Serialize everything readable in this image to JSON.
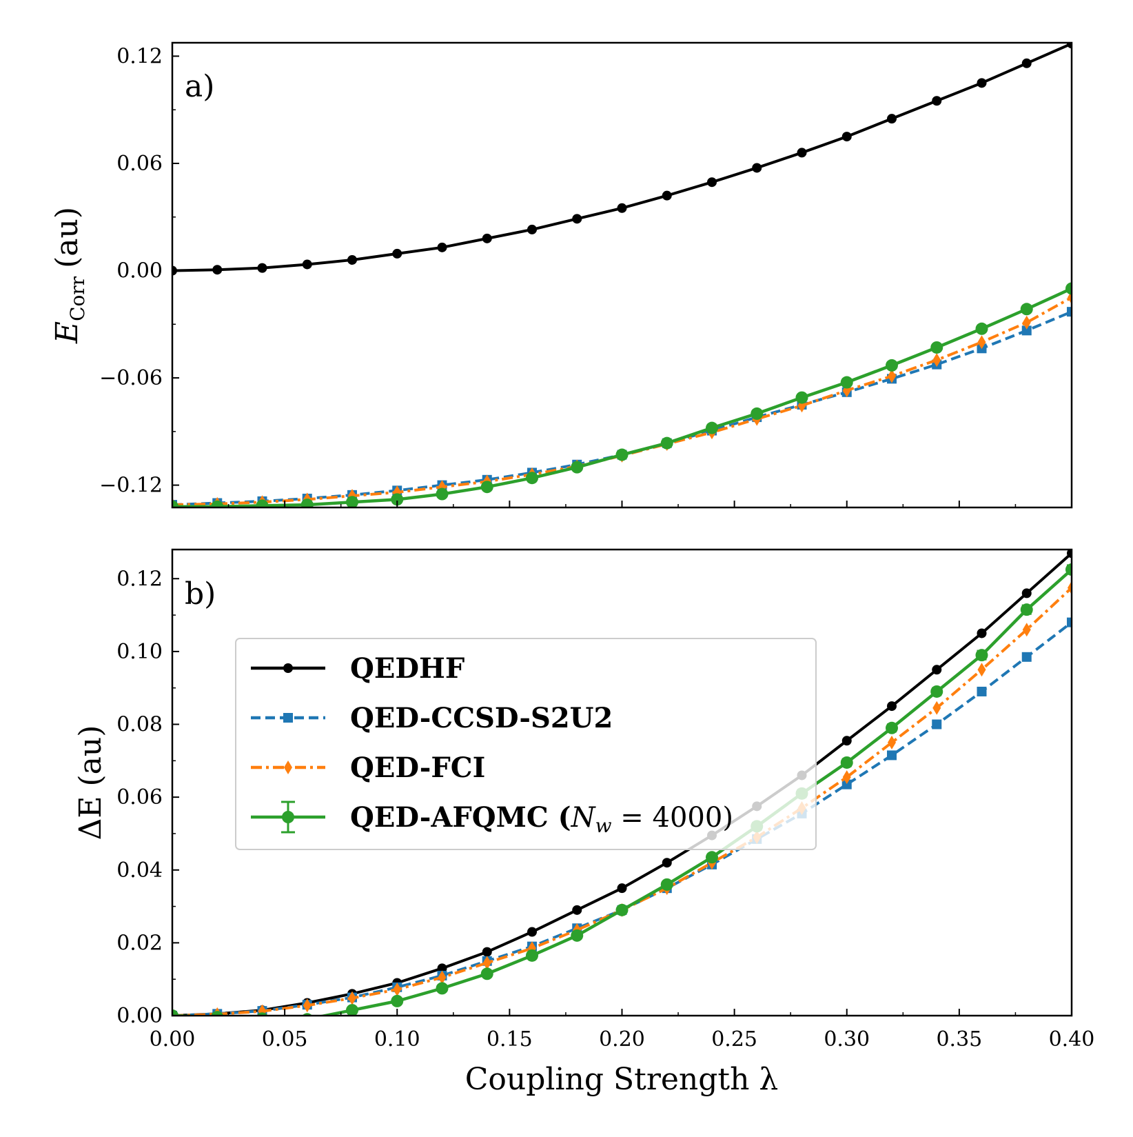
{
  "chart_data": [
    {
      "type": "line",
      "panel_label": "a)",
      "title": "",
      "xlabel": "",
      "ylabel": "E",
      "ylabel_subscript": "Corr",
      "ylabel_suffix": "(au)",
      "xlim": [
        0.0,
        0.4
      ],
      "ylim": [
        -0.1325,
        0.1275
      ],
      "xticks": [
        0.0,
        0.05,
        0.1,
        0.15,
        0.2,
        0.25,
        0.3,
        0.35,
        0.4
      ],
      "yticks": [
        -0.12,
        -0.06,
        0.0,
        0.06,
        0.12
      ],
      "ytick_labels": [
        "−0.12",
        "−0.06",
        "0.00",
        "0.06",
        "0.12"
      ],
      "x": [
        0.0,
        0.02,
        0.04,
        0.06,
        0.08,
        0.1,
        0.12,
        0.14,
        0.16,
        0.18,
        0.2,
        0.22,
        0.24,
        0.26,
        0.28,
        0.3,
        0.32,
        0.34,
        0.36,
        0.38,
        0.4
      ],
      "series": [
        {
          "name": "QEDHF",
          "color": "#000000",
          "marker": "circle",
          "dash": "solid",
          "values": [
            0.0,
            0.0005,
            0.0015,
            0.0035,
            0.006,
            0.0095,
            0.013,
            0.018,
            0.023,
            0.029,
            0.035,
            0.042,
            0.0495,
            0.0575,
            0.066,
            0.075,
            0.085,
            0.095,
            0.105,
            0.116,
            0.127
          ]
        },
        {
          "name": "QED-CCSD-S2U2",
          "color": "#1f77b4",
          "marker": "square",
          "dash": "dashed",
          "values": [
            -0.131,
            -0.13,
            -0.129,
            -0.1275,
            -0.1255,
            -0.123,
            -0.12,
            -0.117,
            -0.113,
            -0.1085,
            -0.103,
            -0.0965,
            -0.0895,
            -0.082,
            -0.075,
            -0.068,
            -0.0605,
            -0.0525,
            -0.0435,
            -0.0335,
            -0.023
          ]
        },
        {
          "name": "QED-FCI",
          "color": "#ff7f0e",
          "marker": "diamond",
          "dash": "dashdot",
          "values": [
            -0.131,
            -0.1305,
            -0.1295,
            -0.128,
            -0.126,
            -0.124,
            -0.121,
            -0.118,
            -0.114,
            -0.1095,
            -0.1035,
            -0.097,
            -0.0905,
            -0.083,
            -0.0755,
            -0.067,
            -0.059,
            -0.05,
            -0.04,
            -0.029,
            -0.015
          ]
        },
        {
          "name": "QED-AFQMC (N_w = 4000)",
          "color": "#2ca02c",
          "marker": "circle-large",
          "dash": "solid",
          "values": [
            -0.132,
            -0.132,
            -0.1315,
            -0.131,
            -0.1295,
            -0.128,
            -0.125,
            -0.121,
            -0.116,
            -0.11,
            -0.103,
            -0.0965,
            -0.088,
            -0.08,
            -0.071,
            -0.0625,
            -0.053,
            -0.043,
            -0.0325,
            -0.0215,
            -0.01
          ],
          "errors": [
            0,
            0,
            0,
            0,
            0,
            0,
            0,
            0,
            0,
            0,
            0,
            0,
            0,
            0,
            0,
            0.001,
            0.001,
            0.0012,
            0.0012,
            0.0012,
            0.0012
          ]
        }
      ]
    },
    {
      "type": "line",
      "panel_label": "b)",
      "title": "",
      "xlabel": "Coupling Strength λ",
      "ylabel": "ΔE (au)",
      "xlim": [
        0.0,
        0.4
      ],
      "ylim": [
        0.0,
        0.128
      ],
      "xticks": [
        0.0,
        0.05,
        0.1,
        0.15,
        0.2,
        0.25,
        0.3,
        0.35,
        0.4
      ],
      "xtick_labels": [
        "0.00",
        "0.05",
        "0.10",
        "0.15",
        "0.20",
        "0.25",
        "0.30",
        "0.35",
        "0.40"
      ],
      "yticks": [
        0.0,
        0.02,
        0.04,
        0.06,
        0.08,
        0.1,
        0.12
      ],
      "ytick_labels": [
        "0.00",
        "0.02",
        "0.04",
        "0.06",
        "0.08",
        "0.10",
        "0.12"
      ],
      "x": [
        0.0,
        0.02,
        0.04,
        0.06,
        0.08,
        0.1,
        0.12,
        0.14,
        0.16,
        0.18,
        0.2,
        0.22,
        0.24,
        0.26,
        0.28,
        0.3,
        0.32,
        0.34,
        0.36,
        0.38,
        0.4
      ],
      "series": [
        {
          "name": "QEDHF",
          "color": "#000000",
          "marker": "circle",
          "dash": "solid",
          "values": [
            0.0,
            0.0005,
            0.0015,
            0.0035,
            0.006,
            0.009,
            0.013,
            0.0175,
            0.023,
            0.029,
            0.035,
            0.042,
            0.0495,
            0.0575,
            0.066,
            0.0755,
            0.085,
            0.095,
            0.105,
            0.116,
            0.127
          ]
        },
        {
          "name": "QED-CCSD-S2U2",
          "color": "#1f77b4",
          "marker": "square",
          "dash": "dashed",
          "values": [
            0.0,
            0.0005,
            0.0013,
            0.003,
            0.005,
            0.0078,
            0.011,
            0.015,
            0.019,
            0.024,
            0.029,
            0.035,
            0.0415,
            0.0485,
            0.0555,
            0.0635,
            0.0715,
            0.08,
            0.089,
            0.0985,
            0.108
          ]
        },
        {
          "name": "QED-FCI",
          "color": "#ff7f0e",
          "marker": "diamond",
          "dash": "dashdot",
          "values": [
            0.0,
            0.0004,
            0.0012,
            0.0028,
            0.0048,
            0.0072,
            0.0105,
            0.0145,
            0.0185,
            0.0235,
            0.029,
            0.035,
            0.042,
            0.049,
            0.057,
            0.0655,
            0.075,
            0.0845,
            0.095,
            0.106,
            0.1175
          ]
        },
        {
          "name": "QED-AFQMC (N_w = 4000)",
          "color": "#2ca02c",
          "marker": "circle-large",
          "dash": "solid",
          "values": [
            0.0,
            -0.0004,
            -0.0008,
            -0.001,
            0.0015,
            0.004,
            0.0075,
            0.0115,
            0.0165,
            0.022,
            0.029,
            0.036,
            0.0435,
            0.052,
            0.061,
            0.0695,
            0.079,
            0.089,
            0.099,
            0.1115,
            0.1225
          ],
          "errors": [
            0,
            0,
            0,
            0,
            0.0005,
            0.0005,
            0.0007,
            0.0007,
            0.0008,
            0.0008,
            0.0008,
            0.0008,
            0.0008,
            0.001,
            0.001,
            0.001,
            0.001,
            0.001,
            0.0012,
            0.0012,
            0.0012
          ]
        }
      ]
    }
  ],
  "legend": {
    "entries": [
      {
        "label": "QEDHF",
        "color": "#000000",
        "marker": "circle",
        "dash": "solid"
      },
      {
        "label": "QED-CCSD-S2U2",
        "color": "#1f77b4",
        "marker": "square",
        "dash": "dashed"
      },
      {
        "label": "QED-FCI",
        "color": "#ff7f0e",
        "marker": "diamond",
        "dash": "dashdot"
      },
      {
        "label": "QED-AFQMC (",
        "label_math": "N",
        "label_math_sub": "w",
        "label_tail": " = 4000)",
        "color": "#2ca02c",
        "marker": "circle-large",
        "dash": "solid",
        "errorbar": true
      }
    ]
  }
}
